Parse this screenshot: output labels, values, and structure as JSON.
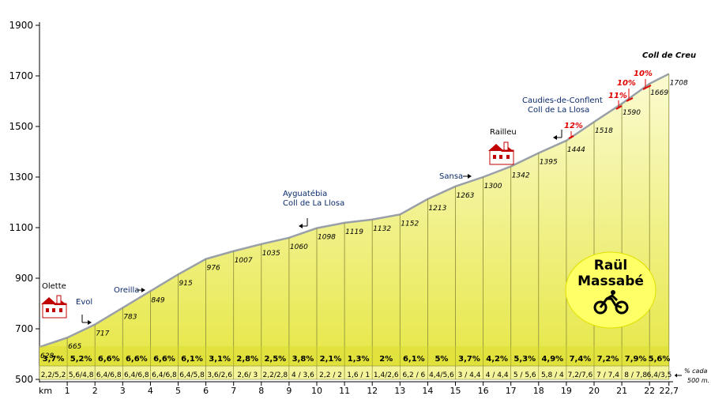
{
  "chart_data": {
    "type": "area",
    "summit_name": "Coll de Creu",
    "y_ticks": [
      500,
      700,
      900,
      1100,
      1300,
      1500,
      1700,
      1900
    ],
    "ylim": [
      500,
      1900
    ],
    "x_label": "km",
    "x_tick_labels": [
      "1",
      "2",
      "3",
      "4",
      "5",
      "6",
      "7",
      "8",
      "9",
      "10",
      "11",
      "12",
      "13",
      "14",
      "15",
      "16",
      "17",
      "18",
      "19",
      "20",
      "21",
      "22",
      "22,7"
    ],
    "km": [
      0,
      1,
      2,
      3,
      4,
      5,
      6,
      7,
      8,
      9,
      10,
      11,
      12,
      13,
      14,
      15,
      16,
      17,
      18,
      19,
      20,
      21,
      22,
      22.7
    ],
    "altitude": [
      628,
      665,
      717,
      783,
      849,
      915,
      976,
      1007,
      1035,
      1060,
      1098,
      1119,
      1132,
      1152,
      1213,
      1263,
      1300,
      1342,
      1395,
      1444,
      1518,
      1590,
      1669,
      1708
    ],
    "gradients": [
      "3,7%",
      "5,2%",
      "6,6%",
      "6,6%",
      "6,6%",
      "6,1%",
      "3,1%",
      "2,8%",
      "2,5%",
      "3,8%",
      "2,1%",
      "1,3%",
      "2%",
      "6,1%",
      "5%",
      "3,7%",
      "4,2%",
      "5,3%",
      "4,9%",
      "7,4%",
      "7,2%",
      "7,9%",
      "5,6%"
    ],
    "sub_gradients": [
      "2,2/5,2",
      "5,6/4,8",
      "6,4/6,8",
      "6,4/6,8",
      "6,4/6,8",
      "6,4/5,8",
      "3,6/2,6",
      "2,6/ 3",
      "2,2/2,8",
      "4 / 3,6",
      "2,2 / 2",
      "1,6 / 1",
      "1,4/2,6",
      "6,2 / 6",
      "4,4/5,6",
      "3 / 4,4",
      "4 / 4,4",
      "5 / 5,6",
      "5,8 / 4",
      "7,2/7,6",
      "7 / 7,4",
      "8 / 7,8",
      "6,4/3,5"
    ],
    "side_note_1": "% cada",
    "side_note_2": "500 m.",
    "places": [
      "Olette",
      "Evol",
      "Oreilla",
      "Ayguatébia",
      "Coll de La Llosa",
      "Sansa",
      "Railleu",
      "Caudies-de-Conflent",
      "Coll de La Llosa"
    ],
    "ramps": [
      "12%",
      "11%",
      "10%",
      "10%"
    ],
    "author_line_1": "Raül",
    "author_line_2": "Massabé",
    "fill_color": "#f1f17a",
    "fill_light_color": "#fbfbcc",
    "band_color": "#d8d825",
    "ramp_color": "#e00000",
    "place_color": "#0a2a6a"
  }
}
